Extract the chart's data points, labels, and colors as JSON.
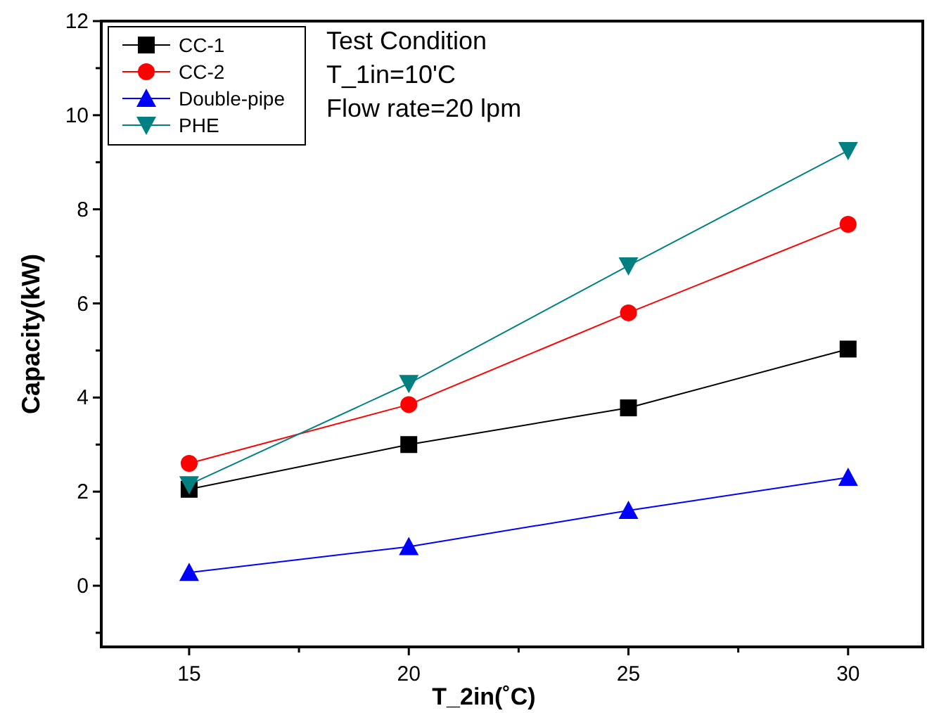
{
  "chart_data": {
    "type": "line",
    "xlabel": "T_2in(˚C)",
    "ylabel": "Capacity(kW)",
    "x": [
      15,
      20,
      25,
      30
    ],
    "xlim": [
      13,
      31.7
    ],
    "xticks": [
      15,
      {
        "value": 17.5,
        "label": null
      },
      20,
      {
        "value": 22.5,
        "label": null
      },
      25,
      {
        "value": 27.5,
        "label": null
      },
      30
    ],
    "ylim": [
      -1.3,
      12
    ],
    "yticks": [
      {
        "value": -1,
        "label": null
      },
      0,
      {
        "value": 1,
        "label": null
      },
      2,
      {
        "value": 3,
        "label": null
      },
      4,
      {
        "value": 5,
        "label": null
      },
      6,
      {
        "value": 7,
        "label": null
      },
      8,
      {
        "value": 9,
        "label": null
      },
      10,
      {
        "value": 11,
        "label": null
      },
      12
    ],
    "grid": false,
    "legend": "top left",
    "line_style": "solid",
    "annotations": [
      "Test Condition",
      "T_1in=10'C",
      "Flow rate=20 lpm"
    ],
    "series": [
      {
        "name": "CC-1",
        "color": "#000000",
        "marker": "square",
        "values": [
          2.05,
          3.0,
          3.78,
          5.03
        ]
      },
      {
        "name": "CC-2",
        "color": "#ff0000",
        "marker": "circle",
        "values": [
          2.6,
          3.85,
          5.8,
          7.68
        ]
      },
      {
        "name": "Double-pipe",
        "color": "#0000ff",
        "marker": "triangle",
        "values": [
          0.28,
          0.83,
          1.6,
          2.3
        ]
      },
      {
        "name": "PHE",
        "color": "#008080",
        "marker": "triangle-down",
        "values": [
          2.15,
          4.3,
          6.8,
          9.25
        ]
      }
    ]
  }
}
